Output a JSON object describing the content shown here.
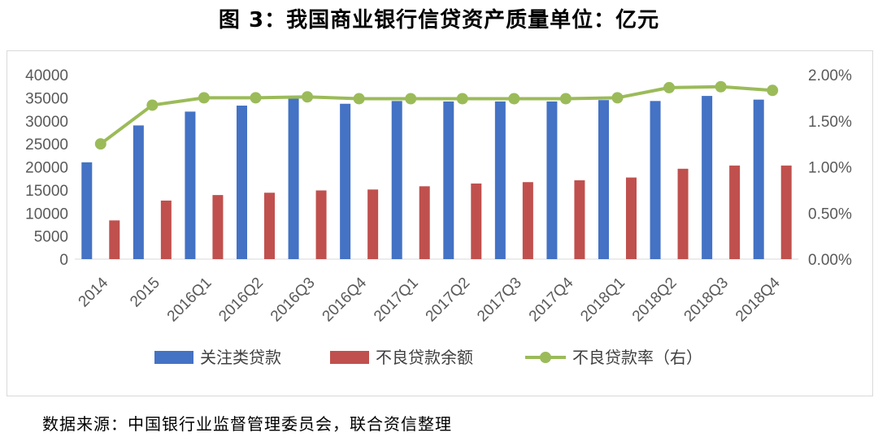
{
  "title": "图 3：我国商业银行信贷资产质量单位：亿元",
  "source": "数据来源：中国银行业监督管理委员会，联合资信整理",
  "chart_data": {
    "type": "bar",
    "categories": [
      "2014",
      "2015",
      "2016Q1",
      "2016Q2",
      "2016Q3",
      "2016Q4",
      "2017Q1",
      "2017Q2",
      "2017Q3",
      "2017Q4",
      "2018Q1",
      "2018Q2",
      "2018Q3",
      "2018Q4"
    ],
    "series": [
      {
        "name": "关注类贷款",
        "type": "bar",
        "axis": "left",
        "color": "#4472c4",
        "values": [
          21000,
          29000,
          32000,
          33300,
          34800,
          33700,
          34300,
          34200,
          34200,
          34200,
          34500,
          34300,
          35400,
          34600
        ]
      },
      {
        "name": "不良贷款余额",
        "type": "bar",
        "axis": "left",
        "color": "#c0504d",
        "values": [
          8400,
          12700,
          13900,
          14400,
          14900,
          15100,
          15800,
          16400,
          16700,
          17100,
          17700,
          19600,
          20300,
          20300
        ]
      },
      {
        "name": "不良贷款率（右）",
        "type": "line",
        "axis": "right",
        "color": "#9bbb59",
        "values": [
          1.25,
          1.67,
          1.75,
          1.75,
          1.76,
          1.74,
          1.74,
          1.74,
          1.74,
          1.74,
          1.75,
          1.86,
          1.87,
          1.83
        ]
      }
    ],
    "left_axis": {
      "ylim": [
        0,
        40000
      ],
      "ticks": [
        "0",
        "5000",
        "10000",
        "15000",
        "20000",
        "25000",
        "30000",
        "35000",
        "40000"
      ]
    },
    "right_axis": {
      "ylim": [
        0,
        2.0
      ],
      "ticks": [
        "0.00%",
        "0.50%",
        "1.00%",
        "1.50%",
        "2.00%"
      ]
    },
    "grid": false,
    "legend": "bottom"
  }
}
